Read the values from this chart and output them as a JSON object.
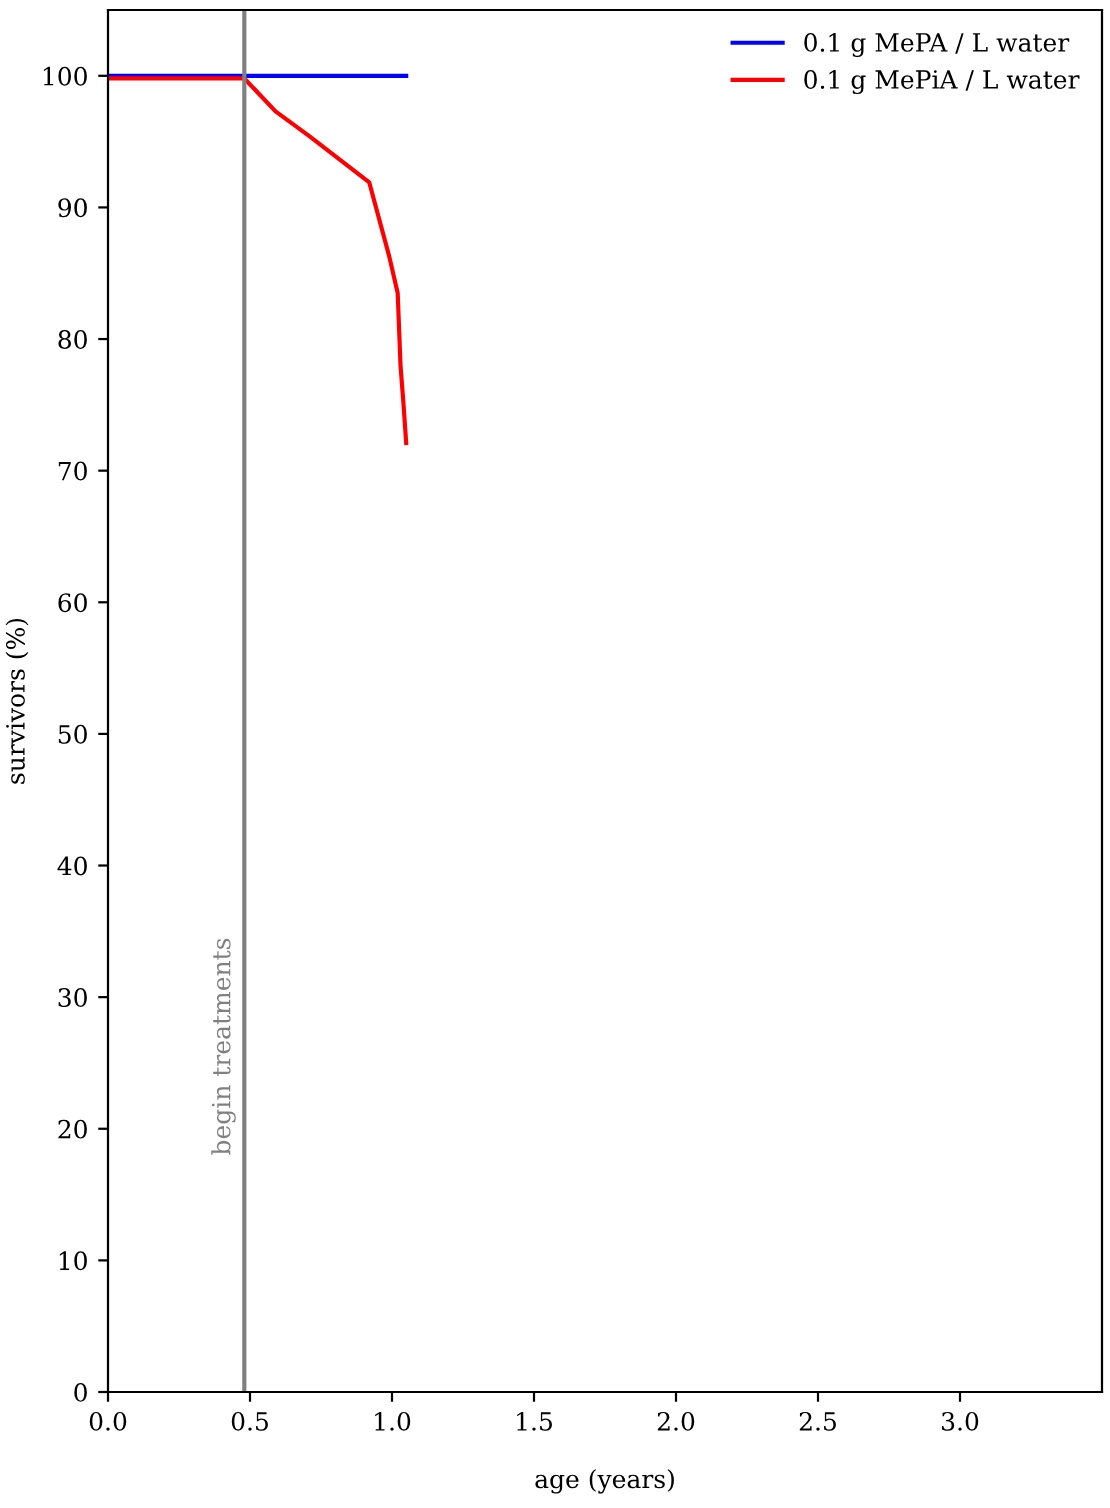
{
  "chart_data": {
    "type": "line",
    "xlabel": "age (years)",
    "ylabel": "survivors (%)",
    "xlim": [
      0,
      3.5
    ],
    "ylim": [
      0,
      105
    ],
    "xticks": [
      {
        "value": 0,
        "label": "0.0"
      },
      {
        "value": 0.5,
        "label": "0.5"
      },
      {
        "value": 1,
        "label": "1.0"
      },
      {
        "value": 1.5,
        "label": "1.5"
      },
      {
        "value": 2,
        "label": "2.0"
      },
      {
        "value": 2.5,
        "label": "2.5"
      },
      {
        "value": 3,
        "label": "3.0"
      }
    ],
    "yticks": [
      0,
      10,
      20,
      30,
      40,
      50,
      60,
      70,
      80,
      90,
      100
    ],
    "series": [
      {
        "name": "0.1 g MePA / L water",
        "color": "#0000ff",
        "x": [
          0,
          0.48,
          1.05
        ],
        "values": [
          100,
          100,
          100
        ]
      },
      {
        "name": "0.1 g MePiA / L water",
        "color": "#ff0000",
        "x": [
          0,
          0.48,
          0.59,
          0.71,
          0.92,
          0.99,
          1.02,
          1.03,
          1.04,
          1.05
        ],
        "values": [
          99.8,
          99.8,
          97.3,
          95.4,
          91.9,
          86.3,
          83.5,
          78,
          75.2,
          72.1
        ]
      }
    ],
    "ref_lines": [
      {
        "axis": "x",
        "value": 0.48,
        "label": "begin treatments",
        "color": "#808080"
      }
    ],
    "legend": "top right",
    "grid": false
  }
}
